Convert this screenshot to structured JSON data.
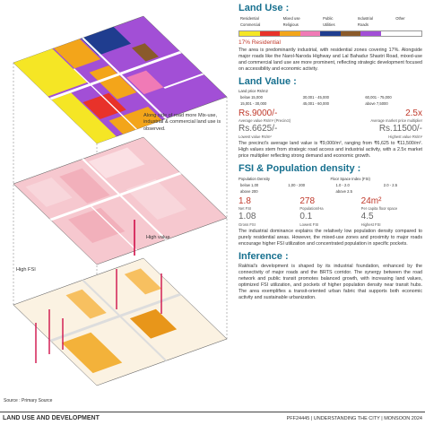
{
  "map_annotations": {
    "mixed_use_note": "Along side of road more Mix-use, industrial & commercial land use is observed.",
    "high_value": "High value",
    "high_fsi": "High FSI",
    "source": "Source : Primary Source"
  },
  "land_use": {
    "title": "Land Use :",
    "legend": [
      {
        "label": "Residential",
        "color": "#f5e625"
      },
      {
        "label": "Commercial",
        "color": "#e8322a"
      },
      {
        "label": "Mixed use",
        "color": "#f3a51a"
      },
      {
        "label": "Religious",
        "color": "#f07ab6"
      },
      {
        "label": "Public",
        "color": "#1f3d8f"
      },
      {
        "label": "Utilities",
        "color": "#8a5a2a"
      },
      {
        "label": "Industrial",
        "color": "#a24fd6"
      },
      {
        "label": "Roads",
        "color": "#ffffff"
      },
      {
        "label": "Other",
        "color": "#ffffff"
      }
    ],
    "highlight_value": "17%",
    "highlight_label": "Residential",
    "text": "The area is predominantly industrial, with residential zones covering 17%. Alongside major roads like the Narol-Naroda Highway and Lal Bahadur Shastri Road, mixed-use and commercial land use are more prominent, reflecting strategic development focused on accessibility and economic activity."
  },
  "land_value": {
    "title": "Land Value :",
    "legend_title": "Land price Rs/m2",
    "legend": [
      {
        "label": "below 15,000",
        "color": "#fde3e6"
      },
      {
        "label": "15,001 - 30,000",
        "color": "#f6b3bc"
      },
      {
        "label": "30,001 - 45,000",
        "color": "#ee8090"
      },
      {
        "label": "45,001 - 60,000",
        "color": "#e04a62"
      },
      {
        "label": "60,001 - 75,000",
        "color": "#c0203a"
      },
      {
        "label": "above 7,5000",
        "color": "#8a0a22"
      }
    ],
    "stats": [
      {
        "value": "Rs.9000/-",
        "label": "Average value Rs/m² (Precinct)"
      },
      {
        "value": "2.5x",
        "label": "Average market price multiplier"
      },
      {
        "value": "Rs.6625/-",
        "label": "Lowest value Rs/m²"
      },
      {
        "value": "Rs.11500/-",
        "label": "Highest value Rs/m²"
      }
    ],
    "text": "The precinct's average land value is ₹9,000/m², ranging from ₹6,625 to ₹11,500/m². High values stem from strategic road access and industrial activity, with a 2.5x market price multiplier reflecting strong demand and economic growth."
  },
  "fsi_density": {
    "title": "FSI & Population density :",
    "density_legend_title": "Population Density",
    "density_legend": [
      {
        "label": "below 1,00",
        "color": "#fde7c4"
      },
      {
        "label": "1,00 - 200",
        "color": "#f7c060"
      },
      {
        "label": "above 200",
        "color": "#e8961a"
      }
    ],
    "fsi_legend_title": "Floor Space Index (FSI)",
    "fsi_legend": [
      {
        "label": "1.0 - 2.0",
        "color": "#f3a0b8"
      },
      {
        "label": "2.0 - 2.5",
        "color": "#e0507a"
      },
      {
        "label": "above 2.5",
        "color": "#b0103a"
      }
    ],
    "stats": [
      {
        "value": "1.8",
        "label": "Net FSI"
      },
      {
        "value": "278",
        "label": "Population/Ha"
      },
      {
        "value": "24m²",
        "label": "Per capita floor space"
      },
      {
        "value": "1.08",
        "label": "Gross FSI"
      },
      {
        "value": "0.1",
        "label": "Lowest FSI"
      },
      {
        "value": "4.5",
        "label": "Highest FSI"
      }
    ],
    "text": "The industrial dominance explains the relatively low population density compared to purely residential areas. However, the mixed-use zones and proximity to major roads encourage higher FSI utilization and concentrated population in specific pockets."
  },
  "inference": {
    "title": "Inference :",
    "text": "Rakhial's development is shaped by its industrial foundation, enhanced by the connectivity of major roads and the BRTS corridor. The synergy between the road network and public transit promotes balanced growth, with increasing land values, optimized FSI utilization, and pockets of higher population density near transit hubs. The area exemplifies a transit-oriented urban fabric that supports both economic activity and sustainable urbanization."
  },
  "footer": {
    "left": "LAND USE AND DEVELOPMENT",
    "right": "PFF24445 | UNDERSTANDING THE CITY | MONSOON 2024"
  }
}
